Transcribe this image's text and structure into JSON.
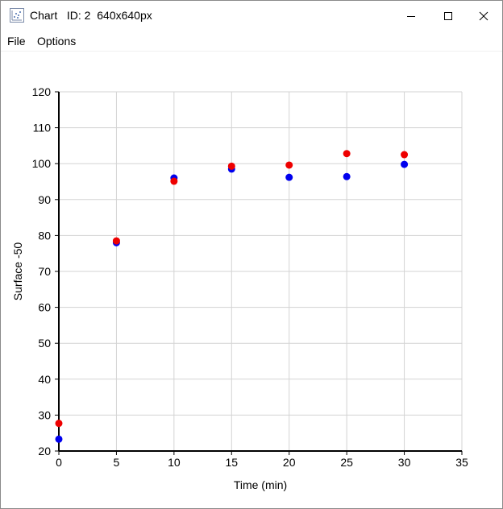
{
  "window": {
    "title": "Chart   ID: 2  640x640px"
  },
  "icons": {
    "app": "chart-app-icon",
    "minimize": "minimize-icon",
    "maximize": "maximize-icon",
    "close": "close-icon"
  },
  "menu": {
    "file": "File",
    "options": "Options"
  },
  "chart_data": {
    "type": "scatter",
    "title": "",
    "xlabel": "Time (min)",
    "ylabel": "Surface -50",
    "xlim": [
      0,
      35
    ],
    "ylim": [
      20,
      120
    ],
    "x_ticks": [
      0,
      5,
      10,
      15,
      20,
      25,
      30,
      35
    ],
    "y_ticks": [
      20,
      30,
      40,
      50,
      60,
      70,
      80,
      90,
      100,
      110,
      120
    ],
    "grid": true,
    "legend": "none",
    "series": [
      {
        "color": "#0000ee",
        "points": [
          {
            "x": 0,
            "y": 23.3
          },
          {
            "x": 5,
            "y": 78.0
          },
          {
            "x": 10,
            "y": 96.0
          },
          {
            "x": 15,
            "y": 98.5
          },
          {
            "x": 20,
            "y": 96.2
          },
          {
            "x": 25,
            "y": 96.4
          },
          {
            "x": 30,
            "y": 99.8
          }
        ]
      },
      {
        "color": "#ee0000",
        "points": [
          {
            "x": 0,
            "y": 27.7
          },
          {
            "x": 5,
            "y": 78.5
          },
          {
            "x": 10,
            "y": 95.1
          },
          {
            "x": 15,
            "y": 99.3
          },
          {
            "x": 20,
            "y": 99.6
          },
          {
            "x": 25,
            "y": 102.8
          },
          {
            "x": 30,
            "y": 102.5
          }
        ]
      }
    ]
  }
}
